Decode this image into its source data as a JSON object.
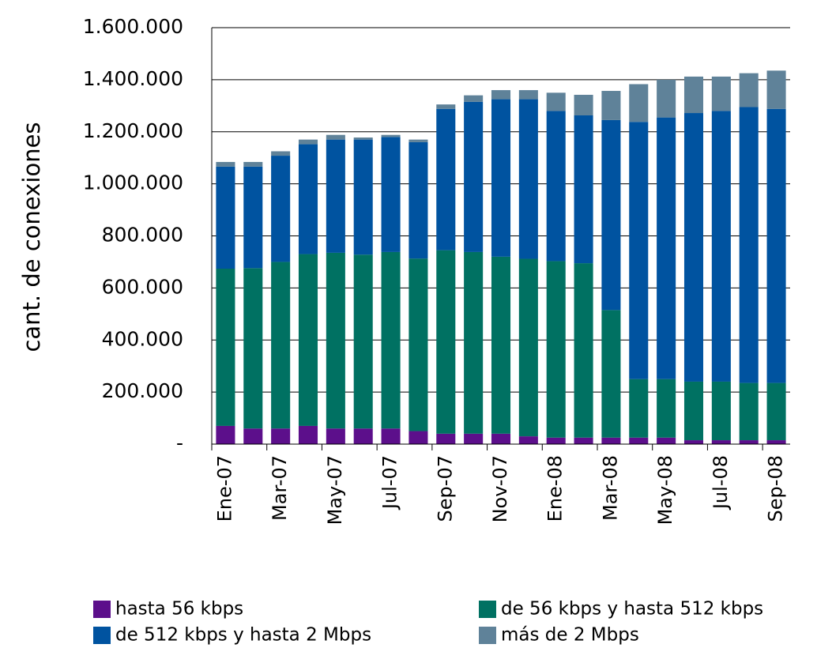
{
  "chart_data": {
    "type": "stacked-bar",
    "y_label": "cant. de conexiones",
    "categories": [
      "Ene-07",
      null,
      "Mar-07",
      null,
      "May-07",
      null,
      "Jul-07",
      null,
      "Sep-07",
      null,
      "Nov-07",
      null,
      "Ene-08",
      null,
      "Mar-08",
      null,
      "May-08",
      null,
      "Jul-08",
      null,
      "Sep-08"
    ],
    "series": [
      {
        "name": "hasta 56 kbps",
        "color": "#5c0f8b",
        "values": [
          70000,
          60000,
          60000,
          70000,
          60000,
          60000,
          60000,
          50000,
          40000,
          40000,
          40000,
          30000,
          25000,
          25000,
          25000,
          25000,
          25000,
          15000,
          15000,
          15000,
          15000
        ]
      },
      {
        "name": "de 56 kbps y hasta 512 kbps",
        "color": "#007162",
        "values": [
          604000,
          616000,
          640000,
          660000,
          675000,
          668000,
          678000,
          663000,
          705000,
          698000,
          680000,
          682000,
          678000,
          670000,
          490000,
          225000,
          225000,
          225000,
          225000,
          220000,
          220000
        ]
      },
      {
        "name": "de 512 kbps y hasta 2 Mbps",
        "color": "#0053a0",
        "values": [
          392000,
          390000,
          408000,
          422000,
          435000,
          442000,
          442000,
          447000,
          543000,
          577000,
          605000,
          613000,
          577000,
          568000,
          730000,
          988000,
          1005000,
          1032000,
          1040000,
          1060000,
          1053000
        ]
      },
      {
        "name": "más de 2 Mbps",
        "color": "#5f8299",
        "values": [
          18000,
          18000,
          17000,
          18000,
          18000,
          8000,
          8000,
          10000,
          17000,
          25000,
          35000,
          35000,
          70000,
          79000,
          112000,
          145000,
          145000,
          140000,
          132000,
          130000,
          147000
        ]
      }
    ],
    "ylim": [
      0,
      1600000
    ],
    "yticks": [
      {
        "value": 0,
        "label": "-"
      },
      {
        "value": 200000,
        "label": "200.000"
      },
      {
        "value": 400000,
        "label": "400.000"
      },
      {
        "value": 600000,
        "label": "600.000"
      },
      {
        "value": 800000,
        "label": "800.000"
      },
      {
        "value": 1000000,
        "label": "1.000.000"
      },
      {
        "value": 1200000,
        "label": "1.200.000"
      },
      {
        "value": 1400000,
        "label": "1.400.000"
      },
      {
        "value": 1600000,
        "label": "1.600.000"
      }
    ],
    "grid": true
  }
}
